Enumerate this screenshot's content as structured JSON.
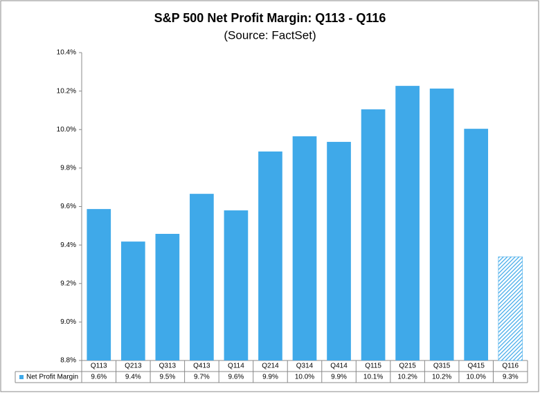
{
  "chart_data": {
    "type": "bar",
    "title": "S&P 500 Net Profit Margin: Q113 - Q116",
    "subtitle": "(Source: FactSet)",
    "categories": [
      "Q113",
      "Q213",
      "Q313",
      "Q413",
      "Q114",
      "Q214",
      "Q314",
      "Q414",
      "Q115",
      "Q215",
      "Q315",
      "Q415",
      "Q116"
    ],
    "series": [
      {
        "name": "Net Profit Margin",
        "color": "#3fa9e9",
        "values": [
          9.587,
          9.418,
          9.458,
          9.666,
          9.58,
          9.886,
          9.965,
          9.936,
          10.105,
          10.227,
          10.213,
          10.004,
          9.339
        ],
        "value_labels": [
          "9.6%",
          "9.4%",
          "9.5%",
          "9.7%",
          "9.6%",
          "9.9%",
          "10.0%",
          "9.9%",
          "10.1%",
          "10.2%",
          "10.2%",
          "10.0%",
          "9.3%"
        ],
        "patterns": [
          "solid",
          "solid",
          "solid",
          "solid",
          "solid",
          "solid",
          "solid",
          "solid",
          "solid",
          "solid",
          "solid",
          "solid",
          "hatch"
        ]
      }
    ],
    "ylim": [
      8.8,
      10.4
    ],
    "yticks": [
      {
        "value": 8.8,
        "label": "8.8%"
      },
      {
        "value": 9.0,
        "label": "9.0%"
      },
      {
        "value": 9.2,
        "label": "9.2%"
      },
      {
        "value": 9.4,
        "label": "9.4%"
      },
      {
        "value": 9.6,
        "label": "9.6%"
      },
      {
        "value": 9.8,
        "label": "9.8%"
      },
      {
        "value": 10.0,
        "label": "10.0%"
      },
      {
        "value": 10.2,
        "label": "10.2%"
      },
      {
        "value": 10.4,
        "label": "10.4%"
      }
    ],
    "grid": false
  }
}
